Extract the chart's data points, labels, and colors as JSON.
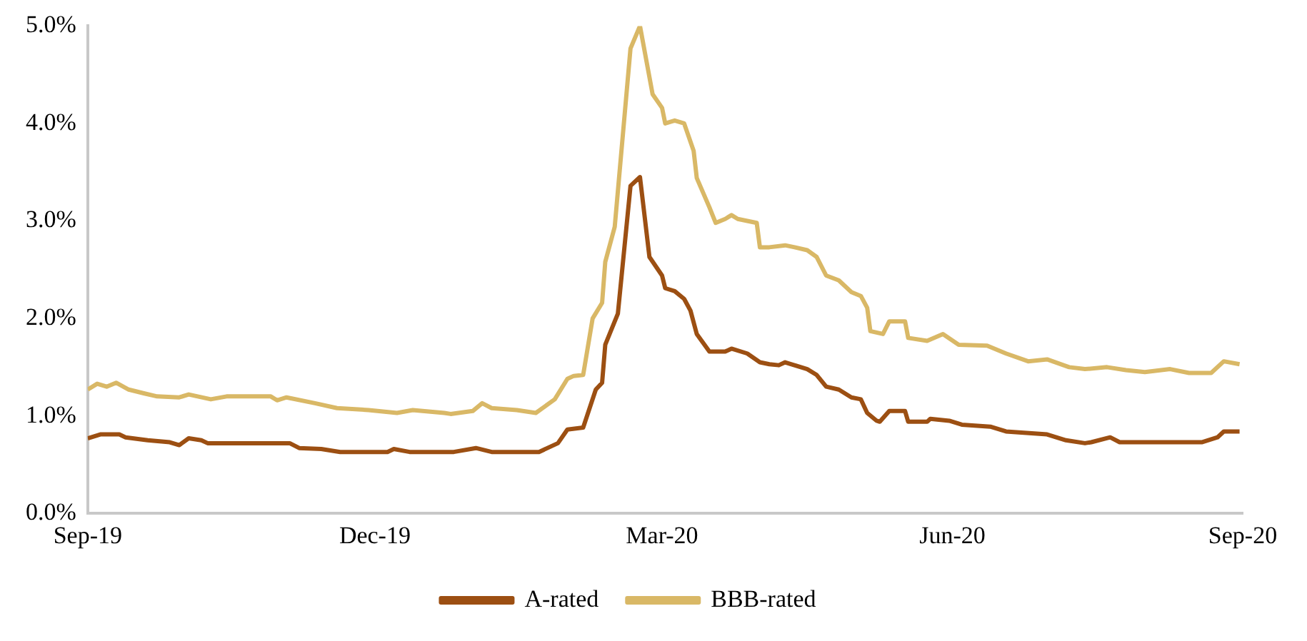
{
  "chart_data": {
    "type": "line",
    "legend": "bottom",
    "marker": "none",
    "xlim": [
      "2019-09-01",
      "2020-09-01"
    ],
    "xticks": [
      {
        "value": "2019-09-01",
        "label": "Sep-19"
      },
      {
        "value": "2019-12-01",
        "label": "Dec-19"
      },
      {
        "value": "2020-03-01",
        "label": "Mar-20"
      },
      {
        "value": "2020-06-01",
        "label": "Jun-20"
      },
      {
        "value": "2020-09-01",
        "label": "Sep-20"
      }
    ],
    "ylim": [
      0,
      5
    ],
    "yticks": [
      {
        "value": 0,
        "label": "0.0%"
      },
      {
        "value": 1,
        "label": "1.0%"
      },
      {
        "value": 2,
        "label": "2.0%"
      },
      {
        "value": 3,
        "label": "3.0%"
      },
      {
        "value": 4,
        "label": "4.0%"
      },
      {
        "value": 5,
        "label": "5.0%"
      }
    ],
    "series": [
      {
        "name": "A-rated",
        "color": "#9c4f12",
        "x": [
          "2019-09-01",
          "2019-09-05",
          "2019-09-11",
          "2019-09-13",
          "2019-09-20",
          "2019-09-27",
          "2019-09-30",
          "2019-10-03",
          "2019-10-07",
          "2019-10-09",
          "2019-11-04",
          "2019-11-07",
          "2019-11-14",
          "2019-11-20",
          "2019-12-05",
          "2019-12-07",
          "2019-12-12",
          "2019-12-26",
          "2020-01-02",
          "2020-01-07",
          "2020-01-22",
          "2020-01-28",
          "2020-01-31",
          "2020-02-05",
          "2020-02-09",
          "2020-02-11",
          "2020-02-12",
          "2020-02-16",
          "2020-02-20",
          "2020-02-23",
          "2020-02-26",
          "2020-03-01",
          "2020-03-02",
          "2020-03-05",
          "2020-03-08",
          "2020-03-10",
          "2020-03-12",
          "2020-03-16",
          "2020-03-21",
          "2020-03-23",
          "2020-03-28",
          "2020-04-01",
          "2020-04-04",
          "2020-04-07",
          "2020-04-09",
          "2020-04-11",
          "2020-04-16",
          "2020-04-19",
          "2020-04-22",
          "2020-04-26",
          "2020-04-30",
          "2020-05-03",
          "2020-05-05",
          "2020-05-08",
          "2020-05-09",
          "2020-05-12",
          "2020-05-17",
          "2020-05-18",
          "2020-05-24",
          "2020-05-25",
          "2020-05-31",
          "2020-06-04",
          "2020-06-13",
          "2020-06-18",
          "2020-07-01",
          "2020-07-07",
          "2020-07-13",
          "2020-07-15",
          "2020-07-21",
          "2020-07-24",
          "2020-08-19",
          "2020-08-24",
          "2020-08-26",
          "2020-08-31"
        ],
        "values": [
          0.77,
          0.81,
          0.81,
          0.78,
          0.75,
          0.73,
          0.7,
          0.77,
          0.75,
          0.72,
          0.72,
          0.67,
          0.66,
          0.63,
          0.63,
          0.66,
          0.63,
          0.63,
          0.67,
          0.63,
          0.63,
          0.72,
          0.86,
          0.88,
          1.27,
          1.34,
          1.73,
          2.05,
          3.36,
          3.45,
          2.63,
          2.44,
          2.31,
          2.28,
          2.2,
          2.08,
          1.84,
          1.66,
          1.66,
          1.69,
          1.64,
          1.55,
          1.53,
          1.52,
          1.55,
          1.53,
          1.48,
          1.42,
          1.3,
          1.27,
          1.19,
          1.17,
          1.03,
          0.95,
          0.94,
          1.05,
          1.05,
          0.94,
          0.94,
          0.97,
          0.95,
          0.91,
          0.89,
          0.84,
          0.81,
          0.75,
          0.72,
          0.73,
          0.78,
          0.73,
          0.73,
          0.78,
          0.84,
          0.84
        ]
      },
      {
        "name": "BBB-rated",
        "color": "#d9b866",
        "x": [
          "2019-09-01",
          "2019-09-04",
          "2019-09-07",
          "2019-09-10",
          "2019-09-14",
          "2019-09-19",
          "2019-09-23",
          "2019-09-30",
          "2019-10-03",
          "2019-10-10",
          "2019-10-15",
          "2019-10-29",
          "2019-10-31",
          "2019-11-03",
          "2019-11-12",
          "2019-11-19",
          "2019-11-29",
          "2019-12-08",
          "2019-12-13",
          "2019-12-23",
          "2019-12-25",
          "2020-01-01",
          "2020-01-04",
          "2020-01-07",
          "2020-01-15",
          "2020-01-21",
          "2020-01-27",
          "2020-01-31",
          "2020-02-02",
          "2020-02-05",
          "2020-02-08",
          "2020-02-11",
          "2020-02-12",
          "2020-02-15",
          "2020-02-20",
          "2020-02-23",
          "2020-02-27",
          "2020-03-01",
          "2020-03-02",
          "2020-03-05",
          "2020-03-08",
          "2020-03-11",
          "2020-03-12",
          "2020-03-16",
          "2020-03-18",
          "2020-03-21",
          "2020-03-23",
          "2020-03-25",
          "2020-03-31",
          "2020-04-01",
          "2020-04-04",
          "2020-04-09",
          "2020-04-12",
          "2020-04-16",
          "2020-04-19",
          "2020-04-22",
          "2020-04-26",
          "2020-04-30",
          "2020-05-03",
          "2020-05-05",
          "2020-05-06",
          "2020-05-10",
          "2020-05-12",
          "2020-05-17",
          "2020-05-18",
          "2020-05-24",
          "2020-05-29",
          "2020-06-03",
          "2020-06-12",
          "2020-06-18",
          "2020-06-25",
          "2020-07-01",
          "2020-07-08",
          "2020-07-13",
          "2020-07-20",
          "2020-07-26",
          "2020-08-01",
          "2020-08-09",
          "2020-08-15",
          "2020-08-22",
          "2020-08-26",
          "2020-08-31"
        ],
        "values": [
          1.27,
          1.33,
          1.3,
          1.34,
          1.27,
          1.23,
          1.2,
          1.19,
          1.22,
          1.17,
          1.2,
          1.2,
          1.16,
          1.19,
          1.13,
          1.08,
          1.06,
          1.03,
          1.06,
          1.03,
          1.02,
          1.05,
          1.13,
          1.08,
          1.06,
          1.03,
          1.17,
          1.38,
          1.41,
          1.42,
          2.0,
          2.16,
          2.58,
          2.94,
          4.77,
          5.0,
          4.3,
          4.16,
          4.0,
          4.03,
          4.0,
          3.72,
          3.44,
          3.14,
          2.98,
          3.02,
          3.06,
          3.02,
          2.98,
          2.73,
          2.73,
          2.75,
          2.73,
          2.7,
          2.63,
          2.44,
          2.39,
          2.27,
          2.23,
          2.11,
          1.87,
          1.84,
          1.97,
          1.97,
          1.8,
          1.77,
          1.84,
          1.73,
          1.72,
          1.64,
          1.56,
          1.58,
          1.5,
          1.48,
          1.5,
          1.47,
          1.45,
          1.48,
          1.44,
          1.44,
          1.56,
          1.53
        ]
      }
    ]
  }
}
